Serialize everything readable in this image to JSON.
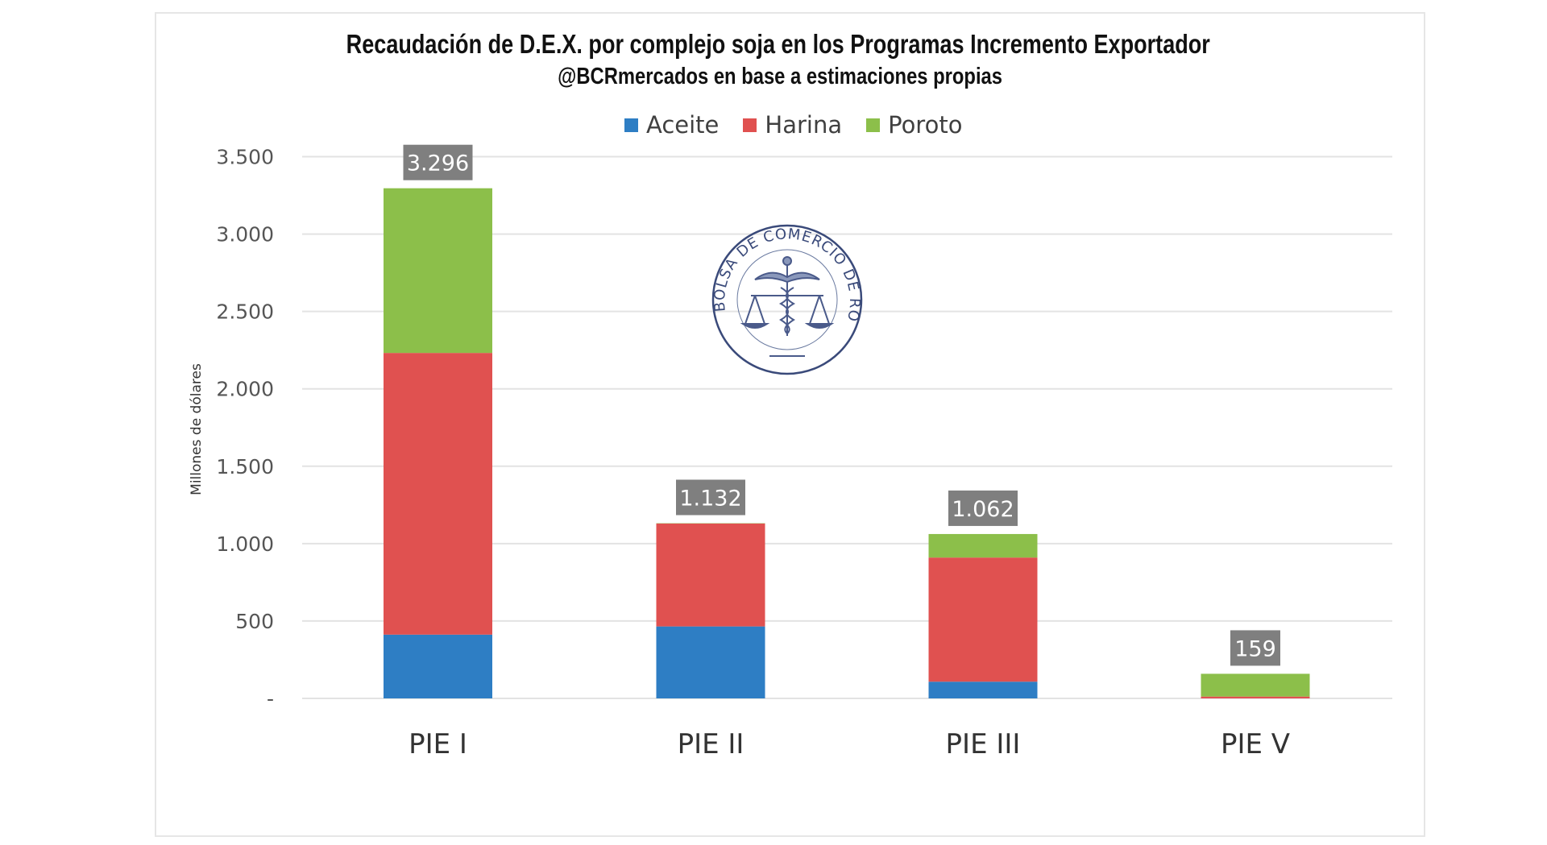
{
  "chart_data": {
    "type": "bar",
    "stacked": true,
    "title": "Recaudación de D.E.X. por complejo soja en los Programas Incremento Exportador",
    "subtitle": "@BCRmercados en base a estimaciones propias",
    "xlabel": "",
    "ylabel": "Millones de dólares",
    "ylim": [
      0,
      3500
    ],
    "yticks": [
      0,
      500,
      1000,
      1500,
      2000,
      2500,
      3000,
      3500
    ],
    "ytick_labels": [
      "-",
      "500",
      "1.000",
      "1.500",
      "2.000",
      "2.500",
      "3.000",
      "3.500"
    ],
    "grid": true,
    "legend_position": "top",
    "categories": [
      "PIE I",
      "PIE II",
      "PIE III",
      "PIE V"
    ],
    "series": [
      {
        "name": "Aceite",
        "color": "#2e7ec4",
        "values": [
          412,
          465,
          108,
          0
        ]
      },
      {
        "name": "Harina",
        "color": "#e05150",
        "values": [
          1820,
          665,
          802,
          12
        ]
      },
      {
        "name": "Poroto",
        "color": "#8cbf4a",
        "values": [
          1064,
          2,
          152,
          147
        ]
      }
    ],
    "totals": [
      3296,
      1132,
      1062,
      159
    ],
    "total_labels": [
      "3.296",
      "1.132",
      "1.062",
      "159"
    ],
    "watermark": "BOLSA DE COMERCIO DE ROSARIO"
  },
  "colors": {
    "label_box": "#7f7f7f",
    "grid": "#e3e3e3"
  }
}
